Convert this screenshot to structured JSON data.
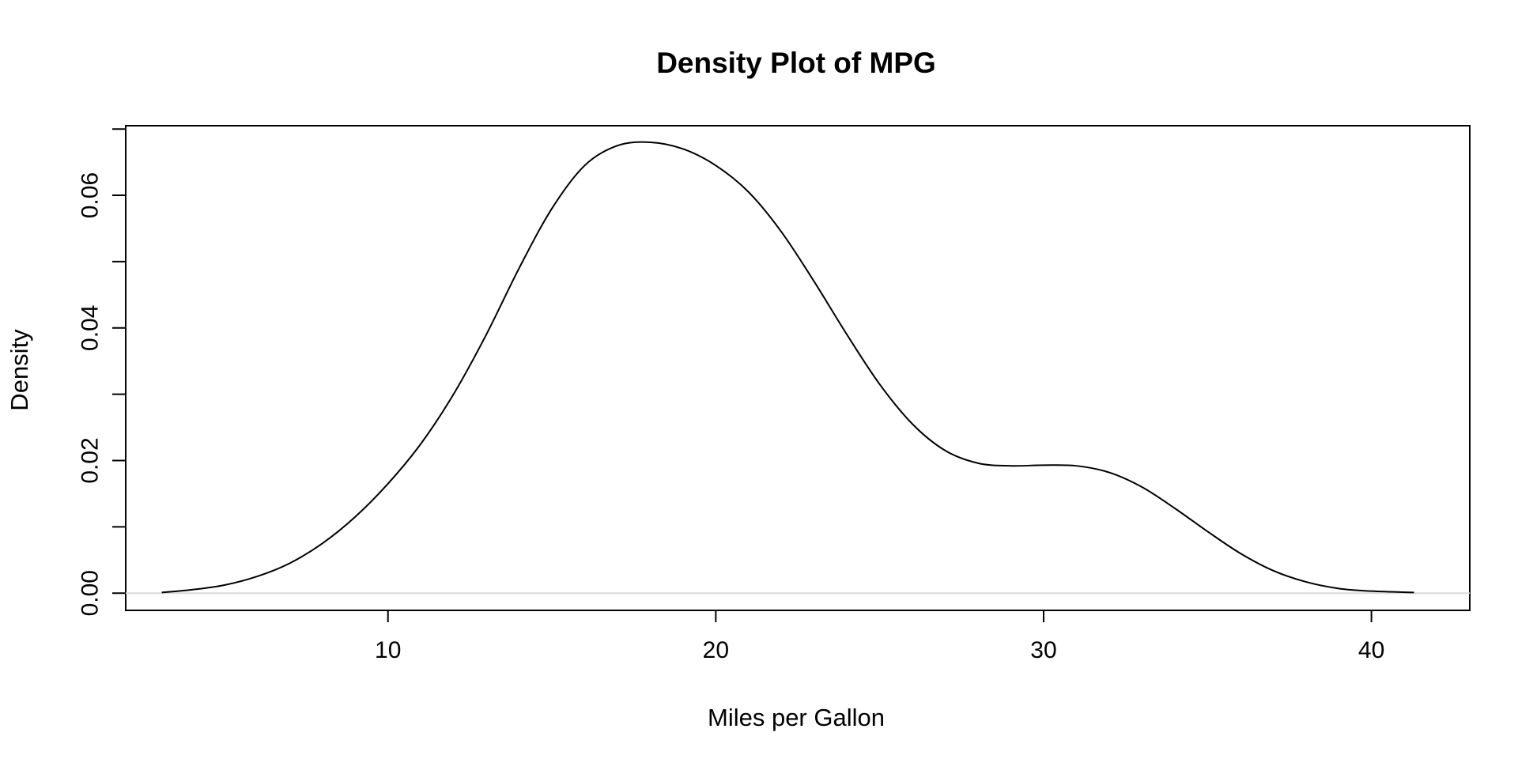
{
  "chart_data": {
    "type": "line",
    "title": "Density Plot of MPG",
    "xlabel": "Miles per Gallon",
    "ylabel": "Density",
    "xlim": [
      2.0,
      43.0
    ],
    "ylim": [
      -0.0026,
      0.0705
    ],
    "x_ticks": [
      10,
      20,
      30,
      40
    ],
    "x_tick_labels": [
      "10",
      "20",
      "30",
      "40"
    ],
    "y_ticks": [
      0.0,
      0.01,
      0.02,
      0.03,
      0.04,
      0.05,
      0.06,
      0.07
    ],
    "y_tick_labels": [
      "0.00",
      "",
      "0.02",
      "",
      "0.04",
      "",
      "0.06",
      ""
    ],
    "grid": false,
    "baseline": 0,
    "colors": {
      "line": "#000000",
      "baseline": "#d9d9d9",
      "frame": "#000000"
    },
    "series": [
      {
        "x": [
          3.1,
          4,
          5,
          6,
          7,
          8,
          9,
          10,
          11,
          12,
          13,
          14,
          15,
          16,
          17,
          18,
          19,
          20,
          21,
          22,
          23,
          24,
          25,
          26,
          27,
          28,
          29,
          30,
          31,
          32,
          33,
          34,
          35,
          36,
          37,
          38,
          39,
          40,
          41.3
        ],
        "y": [
          0.0001,
          0.0005,
          0.0012,
          0.0025,
          0.0045,
          0.0075,
          0.0115,
          0.0165,
          0.0225,
          0.03,
          0.039,
          0.049,
          0.058,
          0.0645,
          0.0675,
          0.068,
          0.067,
          0.0645,
          0.0605,
          0.0545,
          0.047,
          0.039,
          0.0315,
          0.0255,
          0.0215,
          0.0196,
          0.0192,
          0.0193,
          0.0192,
          0.0182,
          0.016,
          0.0128,
          0.0093,
          0.006,
          0.0034,
          0.0017,
          0.0007,
          0.0003,
          0.0001
        ]
      }
    ]
  }
}
